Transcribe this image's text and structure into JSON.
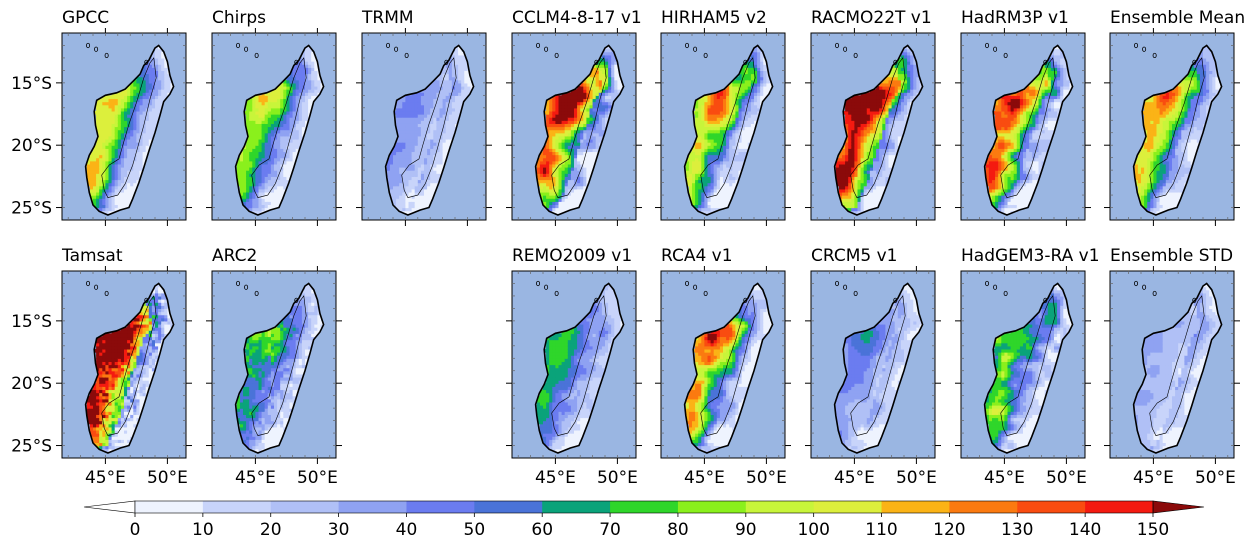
{
  "chart_data": {
    "type": "heatmap",
    "panels": [
      {
        "title": "GPCC",
        "pattern": "gpcc"
      },
      {
        "title": "Chirps",
        "pattern": "chirps"
      },
      {
        "title": "TRMM",
        "pattern": "trmm"
      },
      {
        "title": "CCLM4-8-17 v1",
        "pattern": "cclm"
      },
      {
        "title": "HIRHAM5 v2",
        "pattern": "hirham"
      },
      {
        "title": "RACMO22T v1",
        "pattern": "racmo"
      },
      {
        "title": "HadRM3P v1",
        "pattern": "hadrm3p"
      },
      {
        "title": "Ensemble Mean",
        "pattern": "ensmean"
      },
      {
        "title": "Tamsat",
        "pattern": "tamsat"
      },
      {
        "title": "ARC2",
        "pattern": "arc2"
      },
      {
        "title": "REMO2009 v1",
        "pattern": "remo"
      },
      {
        "title": "RCA4 v1",
        "pattern": "rca4"
      },
      {
        "title": "CRCM5 v1",
        "pattern": "crcm5"
      },
      {
        "title": "HadGEM3-RA v1",
        "pattern": "hadgem"
      },
      {
        "title": "Ensemble STD",
        "pattern": "ensstd"
      }
    ],
    "y_ticks": [
      "15°S",
      "20°S",
      "25°S"
    ],
    "x_ticks": [
      "45°E",
      "50°E"
    ],
    "colorbar": {
      "ticks": [
        "0",
        "10",
        "20",
        "30",
        "40",
        "50",
        "60",
        "70",
        "80",
        "90",
        "100",
        "110",
        "120",
        "130",
        "140",
        "150"
      ],
      "colors": [
        "#eef3fe",
        "#c8d4fa",
        "#b0c0f6",
        "#8fa2f2",
        "#6b7cf0",
        "#4a73d8",
        "#0aa37a",
        "#2fd62a",
        "#8af01c",
        "#c8f53a",
        "#dcef3c",
        "#fbb316",
        "#fb7a10",
        "#f94c10",
        "#f41a10"
      ],
      "under_color": "#ffffff",
      "over_color": "#8b0a0a"
    },
    "ocean_color": "#9ab6e2"
  }
}
